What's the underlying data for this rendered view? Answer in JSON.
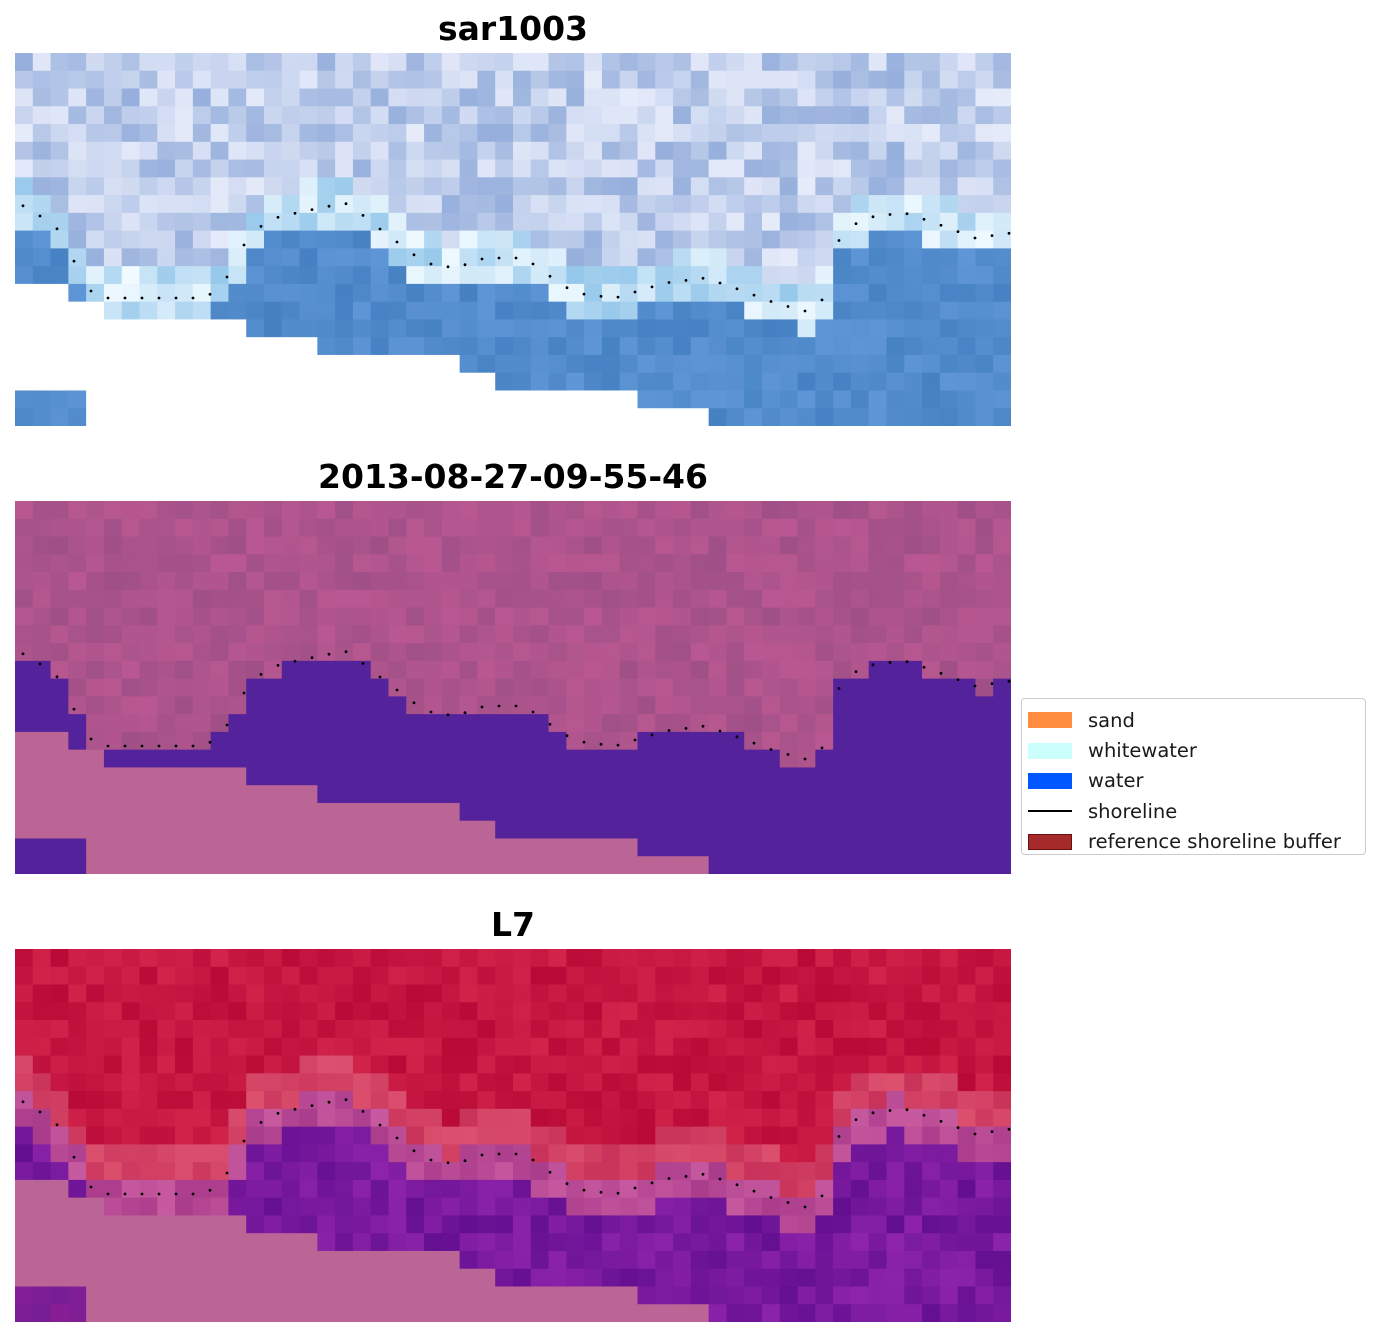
{
  "panels": [
    {
      "title": "sar1003",
      "style": "rgb"
    },
    {
      "title": "2013-08-27-09-55-46",
      "style": "classified"
    },
    {
      "title": "L7",
      "style": "index"
    }
  ],
  "legend": {
    "items": [
      {
        "label": "sand",
        "kind": "patch",
        "color": "#ff8c3f",
        "edge": "#ff8c3f"
      },
      {
        "label": "whitewater",
        "kind": "patch",
        "color": "#cbfffb",
        "edge": "#cbfffb"
      },
      {
        "label": "water",
        "kind": "patch",
        "color": "#0057ff",
        "edge": "#0057ff"
      },
      {
        "label": "shoreline",
        "kind": "line",
        "color": "#000000"
      },
      {
        "label": "reference shoreline buffer",
        "kind": "patch",
        "color": "#a52a2a",
        "edge": "#6b0f0f"
      }
    ]
  },
  "colors": {
    "nodata_index": "#bb6496",
    "classified_land": "#ad5d92",
    "classified_water": "#54229b",
    "classified_nodata": "#bb6496",
    "shoreline_dots": "#000000"
  }
}
